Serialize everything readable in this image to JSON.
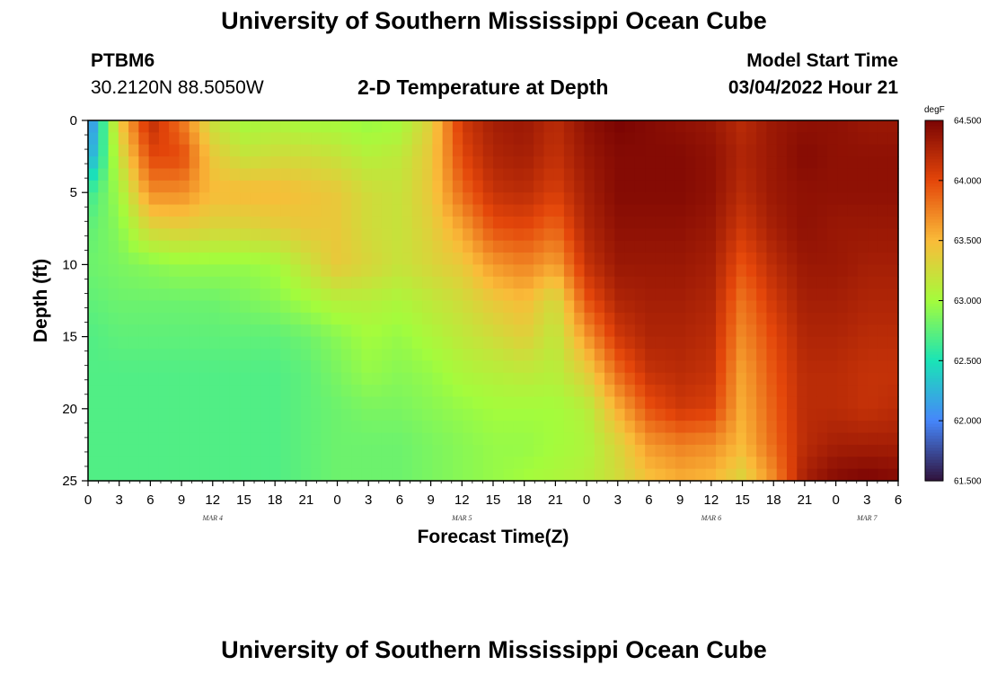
{
  "header": {
    "title": "University of Southern Mississippi Ocean Cube",
    "station": "PTBM6",
    "coords": "30.2120N  88.5050W",
    "subtitle": "2-D Temperature at Depth",
    "model_start_label": "Model Start Time",
    "model_start_value": "03/04/2022 Hour 21"
  },
  "footer": {
    "title": "University of Southern Mississippi Ocean Cube"
  },
  "chart_data": {
    "type": "heatmap",
    "title": "2-D Temperature at Depth",
    "xlabel": "Forecast Time(Z)",
    "ylabel": "Depth (ft)",
    "x_hours_range": [
      0,
      78
    ],
    "x_ticks": [
      "0",
      "3",
      "6",
      "9",
      "12",
      "15",
      "18",
      "21",
      "0",
      "3",
      "6",
      "9",
      "12",
      "15",
      "18",
      "21",
      "0",
      "3",
      "6",
      "9",
      "12",
      "15",
      "18",
      "21",
      "0",
      "3",
      "6"
    ],
    "day_labels": [
      {
        "label": "MAR 4",
        "hour": 12
      },
      {
        "label": "MAR 5",
        "hour": 36
      },
      {
        "label": "MAR 6",
        "hour": 60
      },
      {
        "label": "MAR 7",
        "hour": 75
      }
    ],
    "ylim": [
      0,
      25
    ],
    "y_ticks": [
      "0",
      "5",
      "10",
      "15",
      "20",
      "25"
    ],
    "colorbar": {
      "unit": "degF",
      "range": [
        61.5,
        64.5
      ],
      "ticks": [
        "64.500",
        "64.000",
        "63.500",
        "63.000",
        "62.500",
        "62.000",
        "61.500"
      ],
      "colors": [
        "#30123b",
        "#4686fb",
        "#1ae4b6",
        "#a4fc3c",
        "#fabb39",
        "#e4460a",
        "#7a0403"
      ]
    },
    "grid_hours": [
      0,
      3,
      6,
      9,
      12,
      15,
      18,
      21,
      24,
      27,
      30,
      33,
      36,
      39,
      42,
      45,
      48,
      51,
      54,
      57,
      60,
      63,
      66,
      69,
      72,
      75,
      78
    ],
    "grid_depths": [
      0,
      2.5,
      5,
      7.5,
      10,
      12.5,
      15,
      17.5,
      20,
      22.5,
      25
    ],
    "values": [
      [
        61.9,
        63.4,
        64.2,
        63.8,
        63.2,
        63.0,
        63.05,
        63.0,
        63.0,
        62.95,
        63.0,
        63.35,
        64.1,
        64.3,
        64.35,
        64.2,
        64.4,
        64.5,
        64.45,
        64.4,
        64.35,
        64.2,
        64.35,
        64.4,
        64.4,
        64.35,
        64.35
      ],
      [
        62.1,
        63.2,
        64.0,
        64.0,
        63.4,
        63.2,
        63.25,
        63.25,
        63.2,
        63.1,
        63.15,
        63.4,
        64.0,
        64.25,
        64.3,
        64.15,
        64.35,
        64.45,
        64.45,
        64.45,
        64.4,
        64.25,
        64.35,
        64.45,
        64.4,
        64.4,
        64.4
      ],
      [
        62.6,
        63.0,
        63.7,
        63.7,
        63.5,
        63.5,
        63.5,
        63.45,
        63.4,
        63.25,
        63.2,
        63.4,
        63.85,
        64.15,
        64.2,
        64.05,
        64.3,
        64.45,
        64.45,
        64.45,
        64.4,
        64.2,
        64.35,
        64.4,
        64.4,
        64.4,
        64.4
      ],
      [
        62.75,
        62.9,
        63.3,
        63.35,
        63.3,
        63.3,
        63.35,
        63.4,
        63.4,
        63.25,
        63.2,
        63.35,
        63.6,
        63.95,
        64.0,
        63.85,
        64.25,
        64.4,
        64.4,
        64.4,
        64.35,
        64.1,
        64.3,
        64.4,
        64.35,
        64.35,
        64.35
      ],
      [
        62.8,
        62.85,
        62.9,
        62.95,
        62.95,
        62.95,
        63.0,
        63.2,
        63.4,
        63.3,
        63.2,
        63.3,
        63.4,
        63.65,
        63.75,
        63.6,
        64.15,
        64.35,
        64.35,
        64.35,
        64.3,
        63.95,
        64.2,
        64.35,
        64.35,
        64.3,
        64.3
      ],
      [
        62.75,
        62.8,
        62.8,
        62.8,
        62.8,
        62.85,
        62.9,
        63.0,
        63.1,
        63.1,
        63.05,
        63.15,
        63.25,
        63.4,
        63.5,
        63.25,
        63.95,
        64.25,
        64.3,
        64.3,
        64.25,
        63.8,
        64.1,
        64.3,
        64.3,
        64.25,
        64.25
      ],
      [
        62.7,
        62.75,
        62.75,
        62.75,
        62.75,
        62.75,
        62.75,
        62.8,
        62.9,
        63.0,
        62.95,
        63.05,
        63.15,
        63.25,
        63.35,
        63.15,
        63.65,
        64.1,
        64.25,
        64.25,
        64.2,
        63.7,
        64.0,
        64.25,
        64.25,
        64.2,
        64.2
      ],
      [
        62.7,
        62.7,
        62.7,
        62.7,
        62.7,
        62.7,
        62.7,
        62.75,
        62.85,
        62.95,
        62.9,
        62.95,
        63.05,
        63.1,
        63.15,
        63.1,
        63.35,
        63.85,
        64.15,
        64.2,
        64.15,
        63.6,
        63.95,
        64.2,
        64.2,
        64.15,
        64.15
      ],
      [
        62.7,
        62.7,
        62.7,
        62.7,
        62.7,
        62.7,
        62.7,
        62.75,
        62.8,
        62.85,
        62.85,
        62.9,
        62.95,
        63.0,
        63.0,
        63.0,
        63.1,
        63.55,
        63.95,
        64.1,
        64.05,
        63.55,
        63.9,
        64.2,
        64.2,
        64.15,
        64.2
      ],
      [
        62.7,
        62.7,
        62.7,
        62.7,
        62.7,
        62.7,
        62.7,
        62.75,
        62.8,
        62.8,
        62.8,
        62.85,
        62.9,
        62.95,
        62.95,
        63.0,
        63.05,
        63.3,
        63.65,
        63.75,
        63.7,
        63.5,
        63.85,
        64.2,
        64.3,
        64.3,
        64.3
      ],
      [
        62.7,
        62.7,
        62.7,
        62.7,
        62.7,
        62.7,
        62.7,
        62.75,
        62.8,
        62.8,
        62.8,
        62.85,
        62.9,
        62.95,
        63.0,
        63.05,
        63.1,
        63.25,
        63.45,
        63.55,
        63.5,
        63.3,
        63.7,
        64.3,
        64.45,
        64.5,
        64.45
      ]
    ]
  }
}
